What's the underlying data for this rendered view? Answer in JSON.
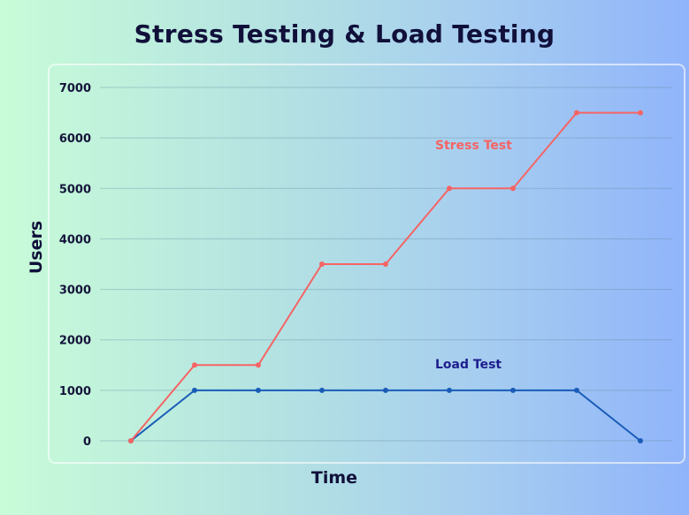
{
  "chart_data": {
    "type": "line",
    "title": "Stress Testing & Load Testing",
    "xlabel": "Time",
    "ylabel": "Users",
    "ylim": [
      0,
      7000
    ],
    "yticks": [
      0,
      1000,
      2000,
      3000,
      4000,
      5000,
      6000,
      7000
    ],
    "x": [
      0,
      1,
      2,
      3,
      4,
      5,
      6,
      7,
      8
    ],
    "grid": true,
    "series": [
      {
        "name": "Stress Test",
        "color": "#f56464",
        "values": [
          0,
          1500,
          1500,
          3500,
          3500,
          5000,
          5000,
          6500,
          6500
        ]
      },
      {
        "name": "Load Test",
        "color": "#1a5cb8",
        "label_color": "#1e1e8c",
        "values": [
          0,
          1000,
          1000,
          1000,
          1000,
          1000,
          1000,
          1000,
          0
        ]
      }
    ]
  }
}
